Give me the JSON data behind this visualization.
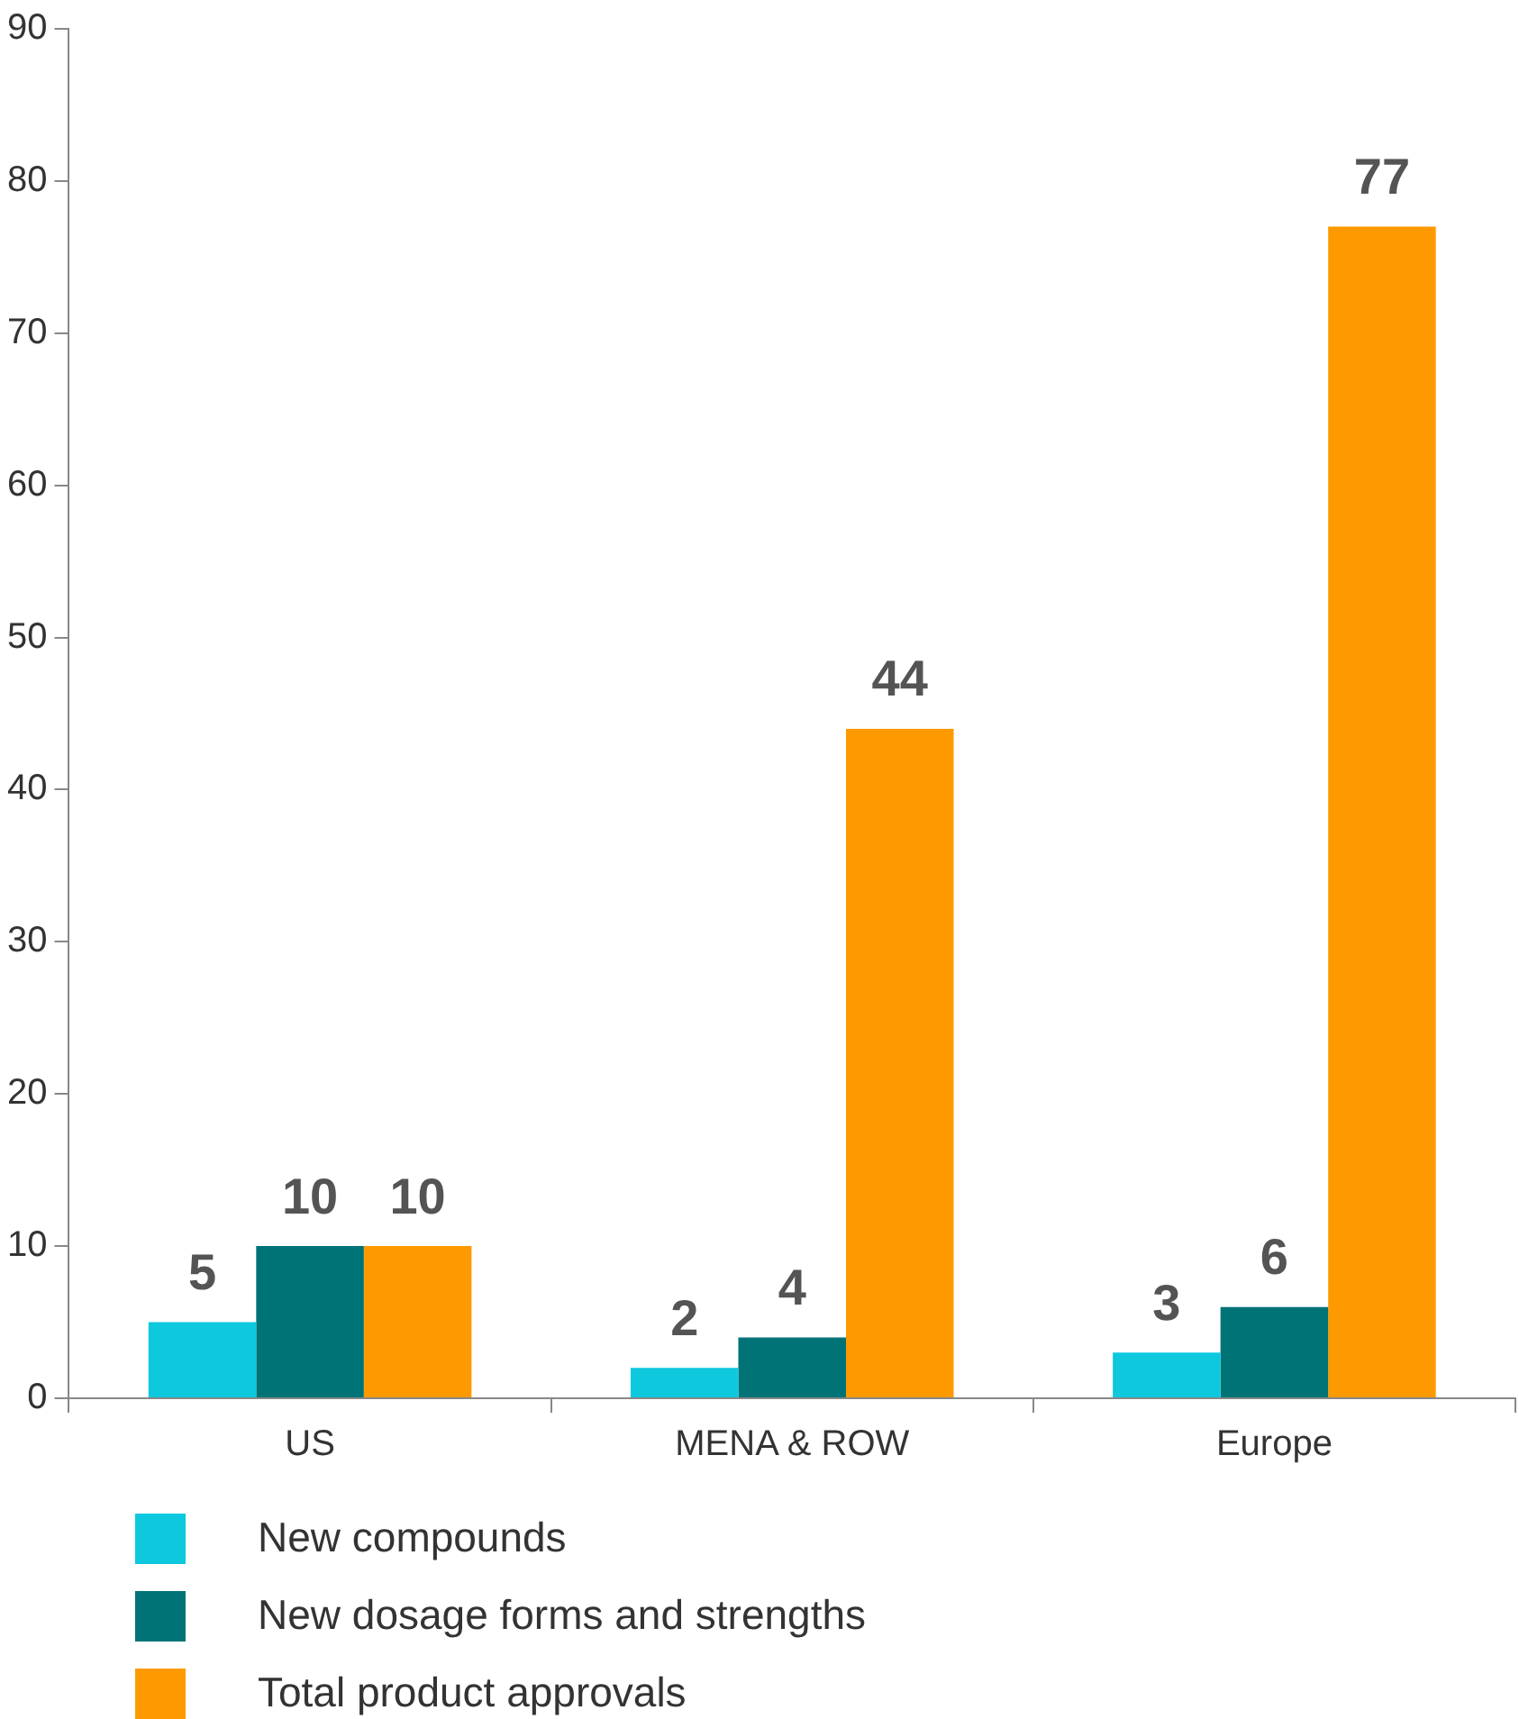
{
  "chart_data": {
    "type": "bar",
    "categories": [
      "US",
      "MENA & ROW",
      "Europe"
    ],
    "series": [
      {
        "name": "New compounds",
        "color": "#0ec8de",
        "values": [
          5,
          2,
          3
        ]
      },
      {
        "name": "New dosage forms and strengths",
        "color": "#007377",
        "values": [
          10,
          4,
          6
        ]
      },
      {
        "name": "Total product approvals",
        "color": "#ff9900",
        "values": [
          10,
          44,
          77
        ]
      }
    ],
    "ylim": [
      0,
      90
    ],
    "yticks": [
      0,
      10,
      20,
      30,
      40,
      50,
      60,
      70,
      80,
      90
    ],
    "grid": false,
    "legend": "bottom left",
    "data_labels": true
  }
}
